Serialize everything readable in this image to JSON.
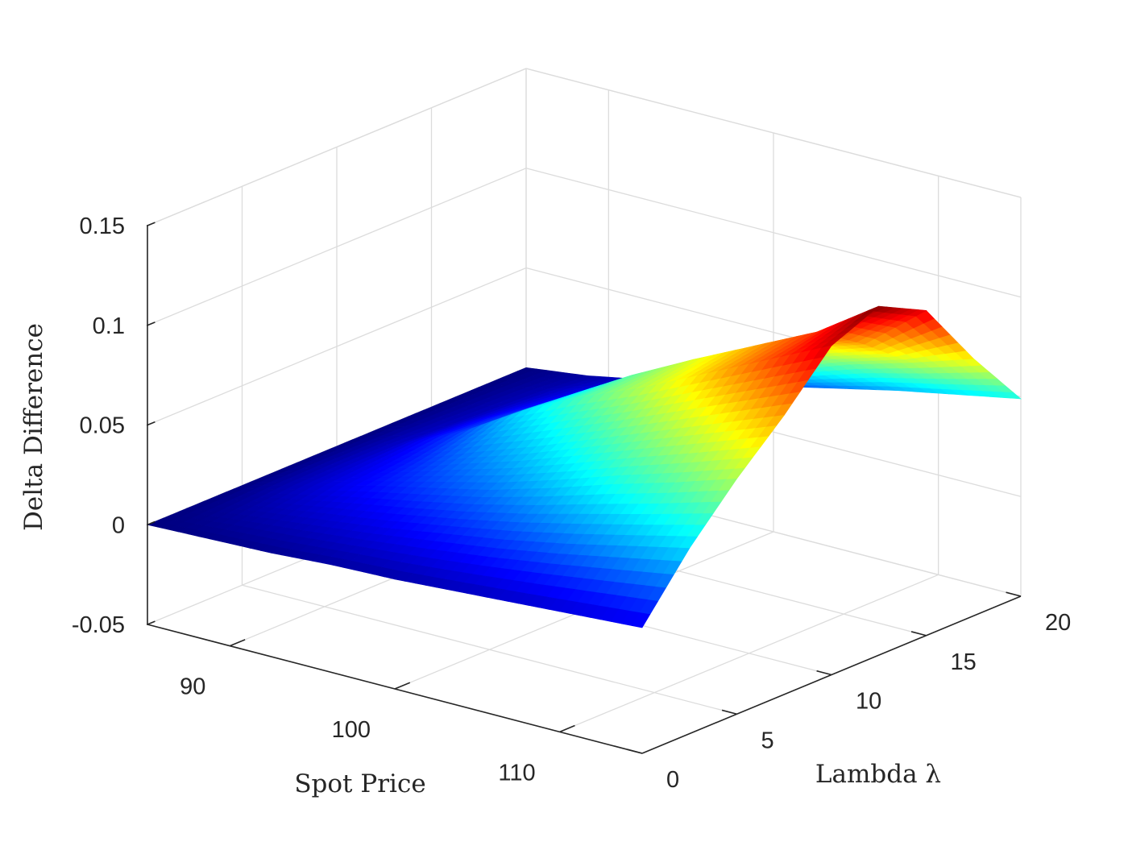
{
  "chart_data": {
    "type": "surface",
    "title": "",
    "xlabel": "Spot Price",
    "ylabel": "Lambda λ",
    "zlabel": "Delta Difference",
    "x_ticks": [
      90,
      100,
      110
    ],
    "y_ticks": [
      0,
      5,
      10,
      15,
      20
    ],
    "z_ticks": [
      -0.05,
      0,
      0.05,
      0.1,
      0.15
    ],
    "x_tick_labels": [
      "90",
      "100",
      "110"
    ],
    "y_tick_labels": [
      "0",
      "5",
      "10",
      "15",
      "20"
    ],
    "z_tick_labels": [
      "-0.05",
      "0",
      "0.05",
      "0.1",
      "0.15"
    ],
    "xlim": [
      85,
      115
    ],
    "ylim": [
      0,
      20
    ],
    "zlim": [
      -0.05,
      0.15
    ],
    "grid": true,
    "colormap": "jet",
    "x": [
      85,
      88.75,
      92.5,
      96.25,
      100,
      103.75,
      107.5,
      111.25,
      115
    ],
    "y": [
      0,
      2.5,
      5,
      7.5,
      10,
      12.5,
      15,
      17.5,
      20
    ],
    "z": [
      [
        0.0,
        0.001,
        0.002,
        0.004,
        0.005,
        0.007,
        0.009,
        0.011,
        0.013
      ],
      [
        0.0,
        0.005,
        0.009,
        0.013,
        0.018,
        0.023,
        0.029,
        0.036,
        0.043
      ],
      [
        0.0,
        0.008,
        0.016,
        0.023,
        0.03,
        0.039,
        0.049,
        0.058,
        0.068
      ],
      [
        0.0,
        0.009,
        0.019,
        0.031,
        0.042,
        0.054,
        0.066,
        0.078,
        0.09
      ],
      [
        0.0,
        0.009,
        0.023,
        0.042,
        0.057,
        0.07,
        0.085,
        0.1,
        0.115
      ],
      [
        0.0,
        0.008,
        0.022,
        0.04,
        0.058,
        0.074,
        0.089,
        0.104,
        0.125
      ],
      [
        0.0,
        0.007,
        0.019,
        0.034,
        0.049,
        0.064,
        0.078,
        0.088,
        0.113
      ],
      [
        0.0,
        0.006,
        0.015,
        0.025,
        0.037,
        0.049,
        0.06,
        0.069,
        0.079
      ],
      [
        0.0,
        0.004,
        0.01,
        0.016,
        0.023,
        0.03,
        0.037,
        0.043,
        0.049
      ]
    ]
  }
}
